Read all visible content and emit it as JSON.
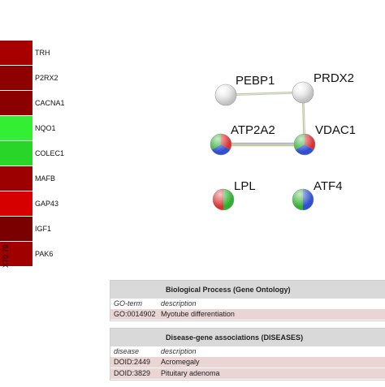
{
  "heatmap": {
    "column_label": "X70.79",
    "genes": [
      {
        "name": "TRH",
        "color": "#a80000"
      },
      {
        "name": "P2RX2",
        "color": "#8f0000"
      },
      {
        "name": "CACNA1",
        "color": "#8b0000"
      },
      {
        "name": "NQO1",
        "color": "#33ee33"
      },
      {
        "name": "COLEC1",
        "color": "#2ad52a"
      },
      {
        "name": "MAFB",
        "color": "#9c0000"
      },
      {
        "name": "GAP43",
        "color": "#d60000"
      },
      {
        "name": "IGF1",
        "color": "#7a0000"
      },
      {
        "name": "PAK6",
        "color": "#a00000"
      }
    ]
  },
  "network": {
    "nodes": [
      {
        "id": "PEBP1",
        "label": "PEBP1",
        "style": "gray"
      },
      {
        "id": "PRDX2",
        "label": "PRDX2",
        "style": "gray"
      },
      {
        "id": "ATP2A2",
        "label": "ATP2A2",
        "style": "rgb"
      },
      {
        "id": "VDAC1",
        "label": "VDAC1",
        "style": "rgb"
      },
      {
        "id": "LPL",
        "label": "LPL",
        "style": "rg"
      },
      {
        "id": "ATF4",
        "label": "ATF4",
        "style": "gb"
      }
    ],
    "edges": [
      {
        "from": "PEBP1",
        "to": "PRDX2"
      },
      {
        "from": "PRDX2",
        "to": "VDAC1"
      },
      {
        "from": "ATP2A2",
        "to": "VDAC1"
      }
    ]
  },
  "tables": [
    {
      "title": "Biological Process (Gene Ontology)",
      "col1": "GO-term",
      "col2": "description",
      "rows": [
        {
          "id": "GO:0014902",
          "desc": "Myotube differentiation"
        }
      ]
    },
    {
      "title": "Disease-gene associations (DISEASES)",
      "col1": "disease",
      "col2": "description",
      "rows": [
        {
          "id": "DOID:2449",
          "desc": "Acromegaly"
        },
        {
          "id": "DOID:3829",
          "desc": "Pituitary adenoma"
        }
      ]
    }
  ]
}
